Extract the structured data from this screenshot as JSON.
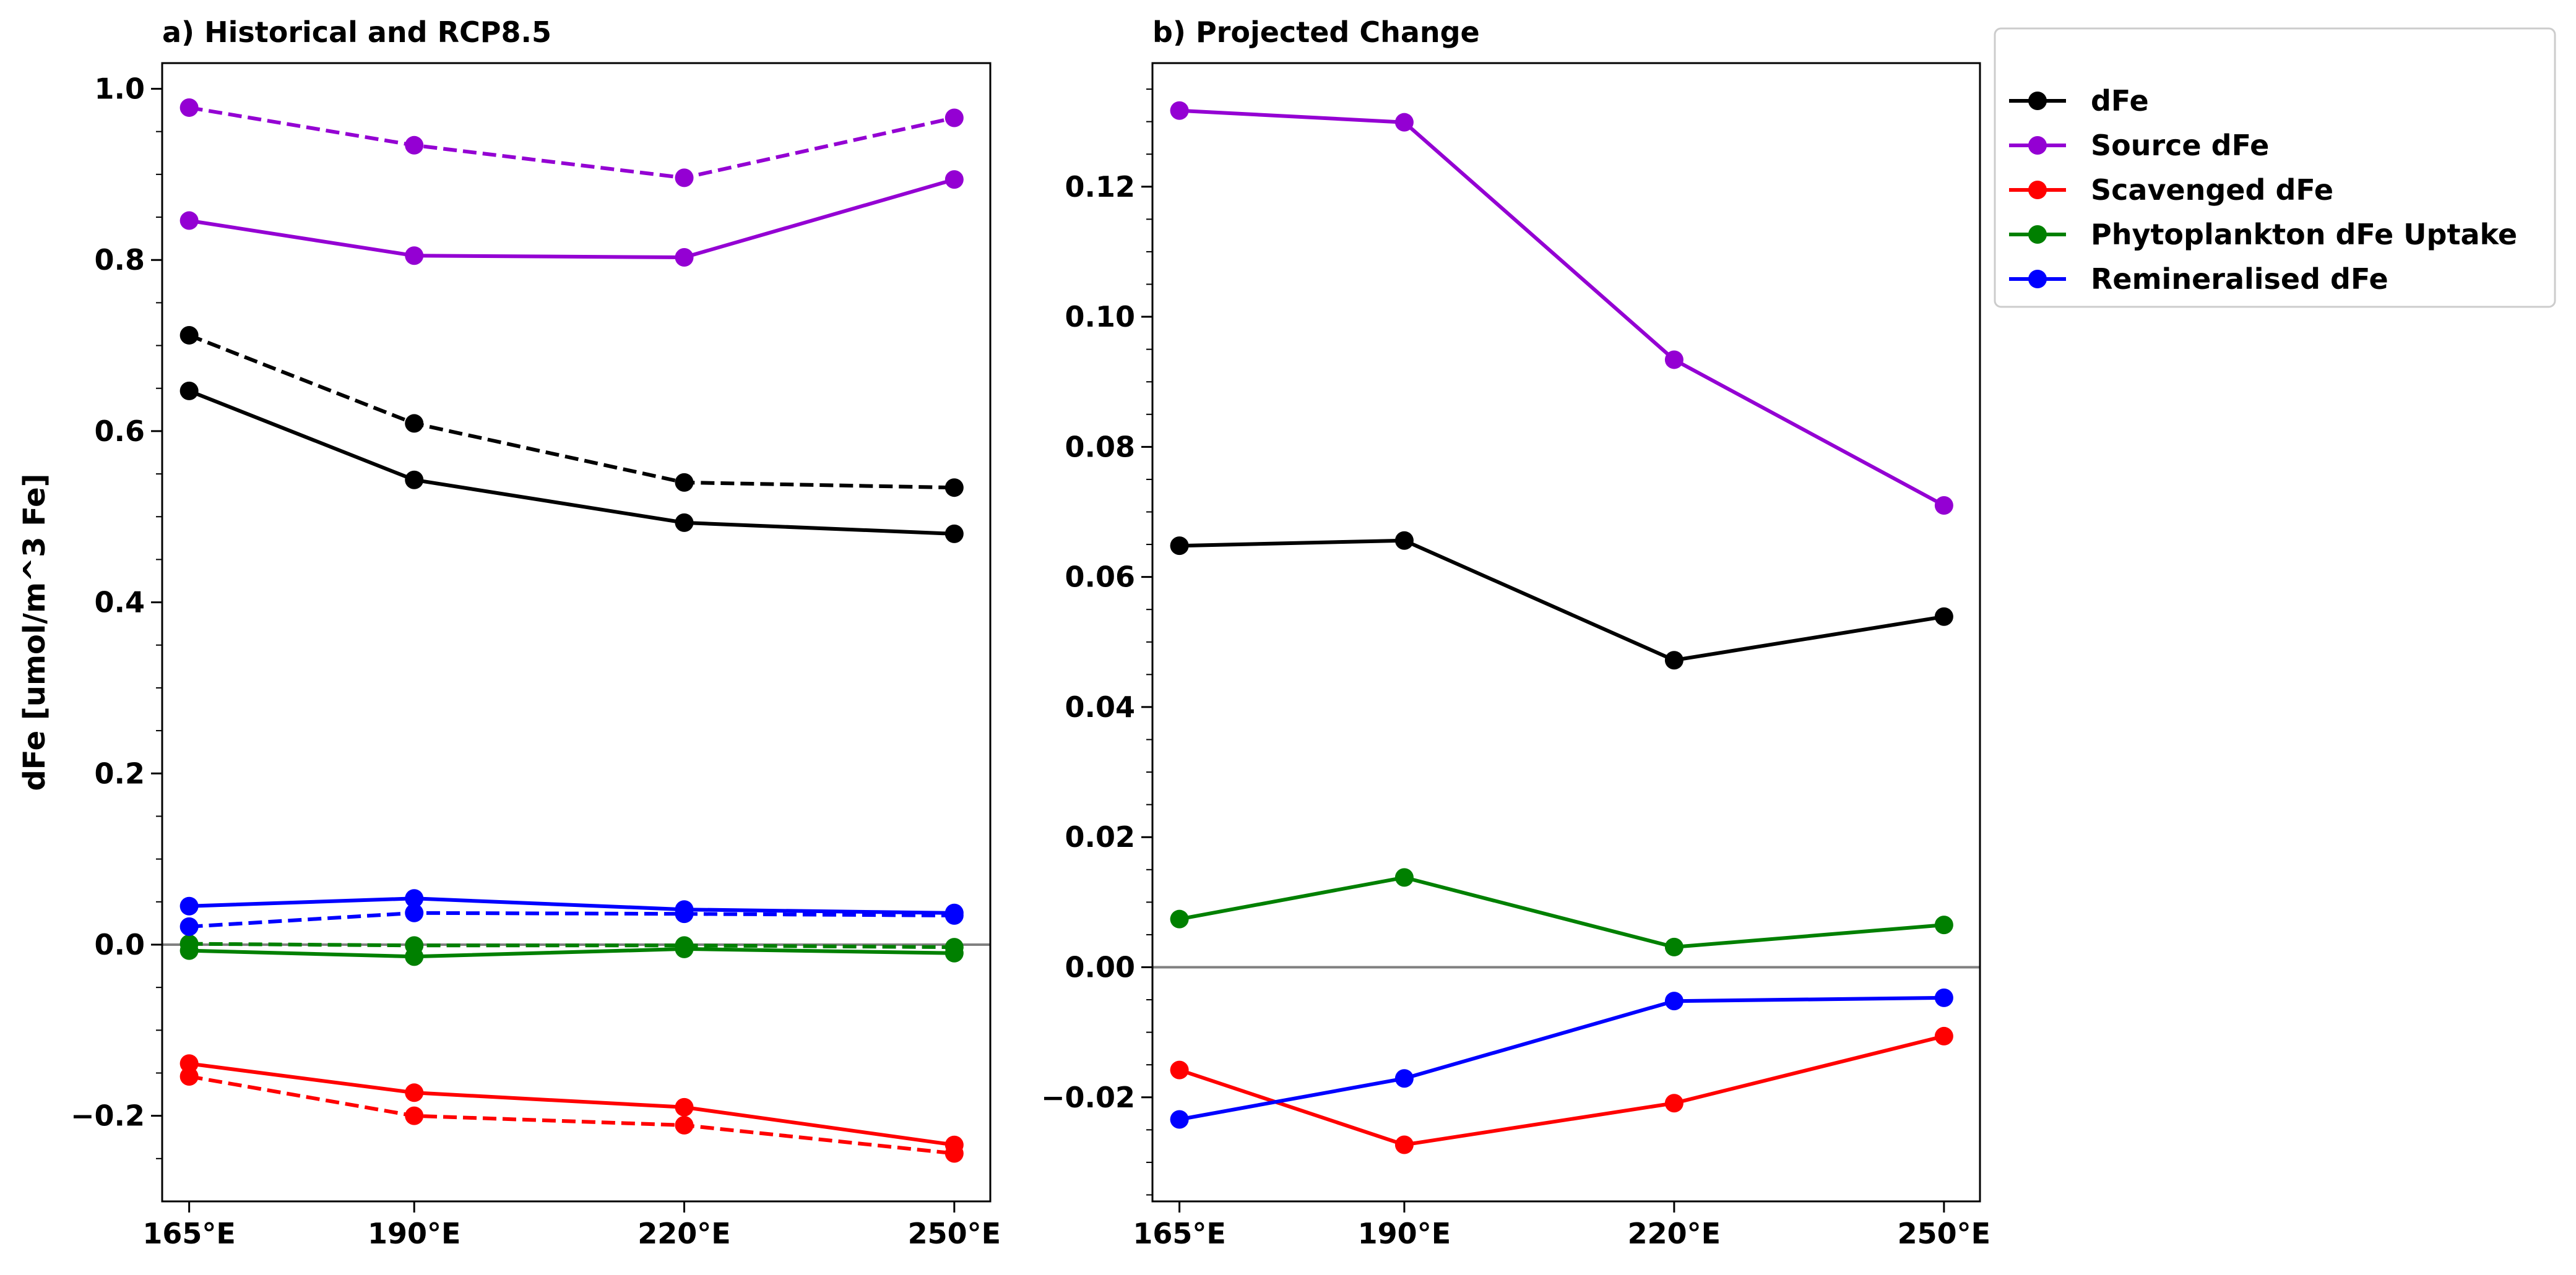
{
  "chart_data": [
    {
      "type": "line",
      "title": "a) Historical and RCP8.5",
      "ylabel": "dFe [umol/m^3 Fe]",
      "xlabel": "",
      "categories": [
        "165°E",
        "190°E",
        "220°E",
        "250°E"
      ],
      "x": [
        165,
        190,
        220,
        250
      ],
      "xlim": [
        162,
        254
      ],
      "ylim": [
        -0.3,
        1.03
      ],
      "yticks": [
        -0.2,
        0.0,
        0.2,
        0.4,
        0.6,
        0.8,
        1.0
      ],
      "ytick_labels": [
        "−0.2",
        "0.0",
        "0.2",
        "0.4",
        "0.6",
        "0.8",
        "1.0"
      ],
      "zero_line": true,
      "grid": false,
      "series": [
        {
          "name": "dFe",
          "style": "solid",
          "color": "#000000",
          "values": [
            0.647,
            0.543,
            0.493,
            0.48
          ]
        },
        {
          "name": "dFe",
          "style": "dashed",
          "color": "#000000",
          "values": [
            0.712,
            0.609,
            0.54,
            0.534
          ]
        },
        {
          "name": "Source dFe",
          "style": "solid",
          "color": "#9400D3",
          "values": [
            0.846,
            0.805,
            0.803,
            0.894
          ]
        },
        {
          "name": "Source dFe",
          "style": "dashed",
          "color": "#9400D3",
          "values": [
            0.978,
            0.934,
            0.896,
            0.966
          ]
        },
        {
          "name": "Scavenged dFe",
          "style": "solid",
          "color": "#FF0000",
          "values": [
            -0.139,
            -0.173,
            -0.19,
            -0.234
          ]
        },
        {
          "name": "Scavenged dFe",
          "style": "dashed",
          "color": "#FF0000",
          "values": [
            -0.154,
            -0.2,
            -0.211,
            -0.244
          ]
        },
        {
          "name": "Phytoplankton dFe Uptake",
          "style": "solid",
          "color": "#008000",
          "values": [
            -0.007,
            -0.014,
            -0.005,
            -0.01
          ]
        },
        {
          "name": "Phytoplankton dFe Uptake",
          "style": "dashed",
          "color": "#008000",
          "values": [
            0.001,
            -0.001,
            -0.001,
            -0.003
          ]
        },
        {
          "name": "Remineralised dFe",
          "style": "solid",
          "color": "#0000FF",
          "values": [
            0.045,
            0.054,
            0.041,
            0.037
          ]
        },
        {
          "name": "Remineralised dFe",
          "style": "dashed",
          "color": "#0000FF",
          "values": [
            0.021,
            0.037,
            0.036,
            0.034
          ]
        }
      ]
    },
    {
      "type": "line",
      "title": "b) Projected Change",
      "ylabel": "",
      "xlabel": "",
      "categories": [
        "165°E",
        "190°E",
        "220°E",
        "250°E"
      ],
      "x": [
        165,
        190,
        220,
        250
      ],
      "xlim": [
        162,
        254
      ],
      "ylim": [
        -0.036,
        0.139
      ],
      "yticks": [
        -0.02,
        0.0,
        0.02,
        0.04,
        0.06,
        0.08,
        0.1,
        0.12
      ],
      "ytick_labels": [
        "−0.02",
        "0.00",
        "0.02",
        "0.04",
        "0.06",
        "0.08",
        "0.10",
        "0.12"
      ],
      "zero_line": true,
      "grid": false,
      "series": [
        {
          "name": "dFe",
          "style": "solid",
          "color": "#000000",
          "values": [
            0.0648,
            0.0656,
            0.0472,
            0.0539
          ]
        },
        {
          "name": "Source dFe",
          "style": "solid",
          "color": "#9400D3",
          "values": [
            0.1317,
            0.1299,
            0.0934,
            0.071
          ]
        },
        {
          "name": "Scavenged dFe",
          "style": "solid",
          "color": "#FF0000",
          "values": [
            -0.0158,
            -0.0273,
            -0.0209,
            -0.0106
          ]
        },
        {
          "name": "Phytoplankton dFe Uptake",
          "style": "solid",
          "color": "#008000",
          "values": [
            0.0074,
            0.0138,
            0.0031,
            0.0065
          ]
        },
        {
          "name": "Remineralised dFe",
          "style": "solid",
          "color": "#0000FF",
          "values": [
            -0.0234,
            -0.0171,
            -0.0052,
            -0.0047
          ]
        }
      ]
    }
  ],
  "legend": {
    "placement": "outside-right-top",
    "items": [
      {
        "label": "dFe",
        "color": "#000000"
      },
      {
        "label": "Source dFe",
        "color": "#9400D3"
      },
      {
        "label": "Scavenged dFe",
        "color": "#FF0000"
      },
      {
        "label": "Phytoplankton dFe Uptake",
        "color": "#008000"
      },
      {
        "label": "Remineralised dFe",
        "color": "#0000FF"
      }
    ]
  }
}
